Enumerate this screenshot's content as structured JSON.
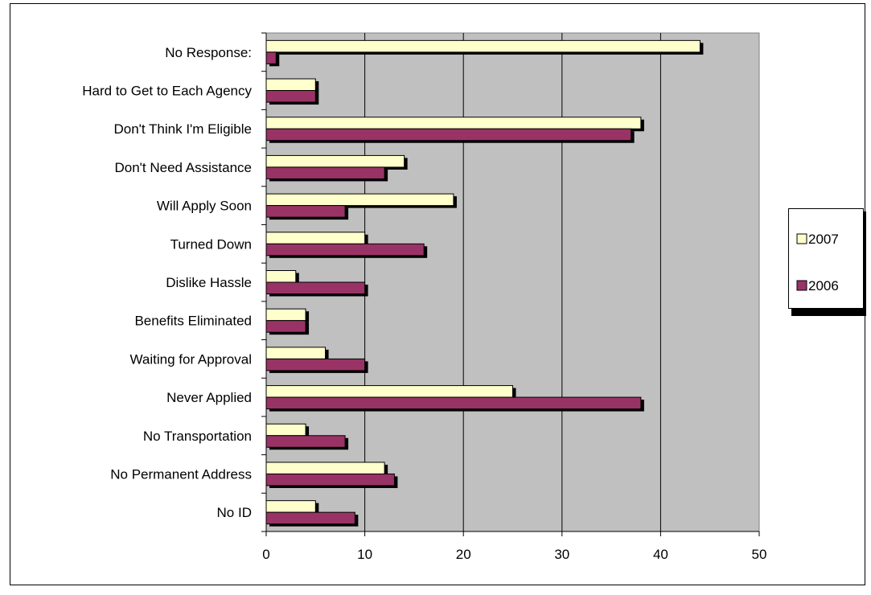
{
  "chart_data": {
    "type": "bar",
    "orientation": "horizontal",
    "categories": [
      "No Response:",
      "Hard to Get to Each Agency",
      "Don't Think I'm Eligible",
      "Don't Need Assistance",
      "Will Apply Soon",
      "Turned Down",
      "Dislike Hassle",
      "Benefits Eliminated",
      "Waiting for Approval",
      "Never Applied",
      "No Transportation",
      "No Permanent Address",
      "No ID"
    ],
    "series": [
      {
        "name": "2007",
        "color": "#ffffcc",
        "values": [
          44,
          5,
          38,
          14,
          19,
          10,
          3,
          4,
          6,
          25,
          4,
          12,
          5
        ]
      },
      {
        "name": "2006",
        "color": "#993366",
        "values": [
          1,
          5,
          37,
          12,
          8,
          16,
          10,
          4,
          10,
          38,
          8,
          13,
          9
        ]
      }
    ],
    "xlim": [
      0,
      50
    ],
    "xticks": [
      "0",
      "10",
      "20",
      "30",
      "40",
      "50"
    ],
    "title": "",
    "xlabel": "",
    "ylabel": "",
    "grid": "vertical",
    "plot_background": "#c0c0c0",
    "legend": "right",
    "bar_shadow": true
  }
}
